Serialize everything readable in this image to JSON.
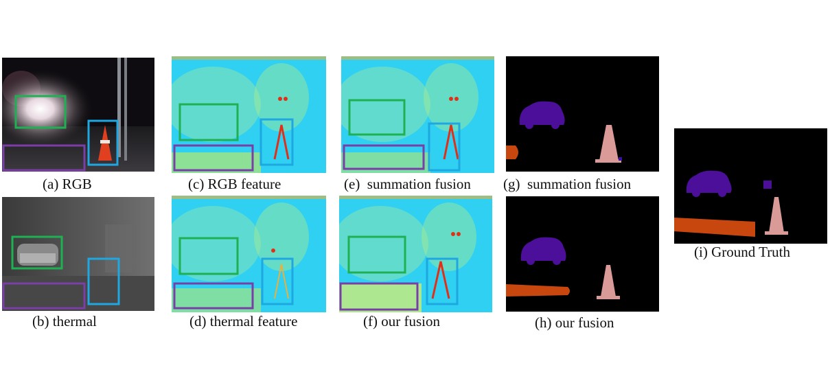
{
  "figure": {
    "panels": [
      {
        "id": "a",
        "caption": "(a) RGB",
        "kind": "rgb-image"
      },
      {
        "id": "b",
        "caption": "(b) thermal",
        "kind": "thermal-image"
      },
      {
        "id": "c",
        "caption": "(c) RGB feature",
        "kind": "feature-heatmap"
      },
      {
        "id": "d",
        "caption": "(d) thermal feature",
        "kind": "feature-heatmap"
      },
      {
        "id": "e",
        "caption": "(e)  summation fusion",
        "kind": "feature-heatmap"
      },
      {
        "id": "f",
        "caption": "(f) our fusion",
        "kind": "feature-heatmap"
      },
      {
        "id": "g",
        "caption": "(g)  summation fusion",
        "kind": "segmentation-map"
      },
      {
        "id": "h",
        "caption": "(h) our fusion",
        "kind": "segmentation-map"
      },
      {
        "id": "i",
        "caption": "(i) Ground Truth",
        "kind": "segmentation-map"
      }
    ],
    "highlight_box_colors": {
      "car": "#1fb054",
      "cone": "#1ea7e1",
      "curb": "#7a3fa6"
    },
    "segmentation_colors": {
      "background": "#000000",
      "car": "#4b0f9a",
      "cone": "#d99a98",
      "curb": "#c8470f",
      "unknown_small": "#3a12a6"
    },
    "heatmap_colors": {
      "low": "#27c8f0",
      "mid": "#c8f060",
      "high": "#e03018"
    }
  }
}
